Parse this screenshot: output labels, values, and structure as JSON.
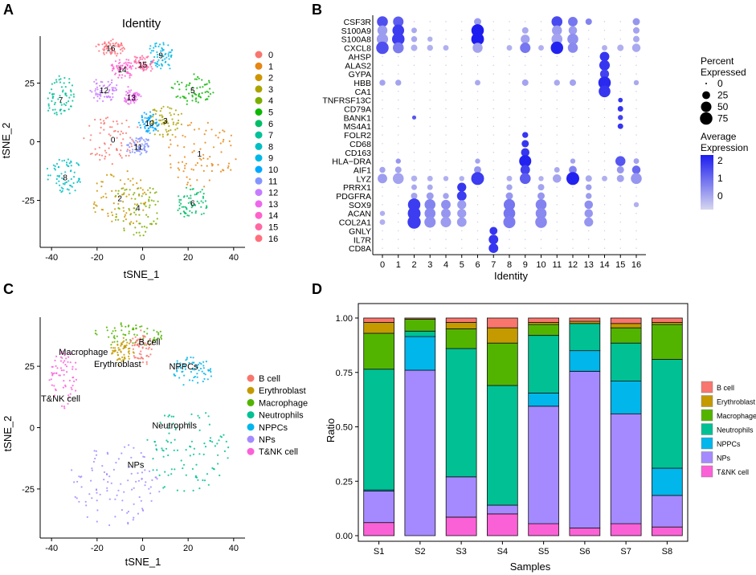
{
  "colors": {
    "identity": [
      "#F8766D",
      "#E68613",
      "#CD9600",
      "#ABA300",
      "#7CAE00",
      "#0CB702",
      "#00BE67",
      "#00C19A",
      "#00BFC4",
      "#00B8E7",
      "#00A9FF",
      "#8494FF",
      "#C77CFF",
      "#ED68ED",
      "#FF61CC",
      "#FF68A1",
      "#FF6F7C"
    ],
    "celltype": [
      "#F8766D",
      "#C49A00",
      "#53B400",
      "#00C094",
      "#00B6EB",
      "#A58AFF",
      "#FB61D7"
    ],
    "dot_low": "#d6d6f0",
    "dot_high": "#1c1cf0"
  },
  "chart_data": [
    {
      "panel": "A",
      "type": "scatter",
      "title": "Identity",
      "xlabel": "tSNE_1",
      "ylabel": "tSNE_2",
      "xlim": [
        -45,
        45
      ],
      "ylim": [
        -45,
        45
      ],
      "xticks": [
        -40,
        -20,
        0,
        20,
        40
      ],
      "yticks": [
        -25,
        0,
        25
      ],
      "legend": [
        "0",
        "1",
        "2",
        "3",
        "4",
        "5",
        "6",
        "7",
        "8",
        "9",
        "10",
        "11",
        "12",
        "13",
        "14",
        "15",
        "16"
      ],
      "legend_position": "right",
      "clusters": [
        {
          "label": "0",
          "cx": -13,
          "cy": 1,
          "rx": 13,
          "ry": 10
        },
        {
          "label": "1",
          "cx": 25,
          "cy": -5,
          "rx": 16,
          "ry": 14
        },
        {
          "label": "2",
          "cx": -10,
          "cy": -24,
          "rx": 13,
          "ry": 12
        },
        {
          "label": "3",
          "cx": 10,
          "cy": 9,
          "rx": 7,
          "ry": 7
        },
        {
          "label": "4",
          "cx": -2,
          "cy": -28,
          "rx": 10,
          "ry": 12
        },
        {
          "label": "5",
          "cx": 22,
          "cy": 22,
          "rx": 9,
          "ry": 6
        },
        {
          "label": "6",
          "cx": 22,
          "cy": -26,
          "rx": 7,
          "ry": 6
        },
        {
          "label": "7",
          "cx": -36,
          "cy": 18,
          "rx": 6,
          "ry": 10
        },
        {
          "label": "8",
          "cx": -34,
          "cy": -15,
          "rx": 8,
          "ry": 8
        },
        {
          "label": "9",
          "cx": 8,
          "cy": 37,
          "rx": 6,
          "ry": 6
        },
        {
          "label": "10",
          "cx": 3,
          "cy": 8,
          "rx": 4,
          "ry": 4
        },
        {
          "label": "11",
          "cx": -2,
          "cy": -2,
          "rx": 5,
          "ry": 4
        },
        {
          "label": "12",
          "cx": -17,
          "cy": 22,
          "rx": 6,
          "ry": 5
        },
        {
          "label": "13",
          "cx": -5,
          "cy": 19,
          "rx": 3,
          "ry": 3
        },
        {
          "label": "14",
          "cx": -9,
          "cy": 31,
          "rx": 5,
          "ry": 4
        },
        {
          "label": "15",
          "cx": 0,
          "cy": 33,
          "rx": 5,
          "ry": 3
        },
        {
          "label": "16",
          "cx": -14,
          "cy": 40,
          "rx": 6,
          "ry": 3
        }
      ]
    },
    {
      "panel": "B",
      "type": "dot",
      "xlabel": "Identity",
      "identities": [
        "0",
        "1",
        "2",
        "3",
        "4",
        "5",
        "6",
        "7",
        "8",
        "9",
        "10",
        "11",
        "12",
        "13",
        "14",
        "15",
        "16"
      ],
      "genes": [
        "CSF3R",
        "S100A9",
        "S100A8",
        "CXCL8",
        "AHSP",
        "ALAS2",
        "GYPA",
        "HBB",
        "CA1",
        "TNFRSF13C",
        "CD79A",
        "BANK1",
        "MS4A1",
        "FOLR2",
        "CD68",
        "CD163",
        "HLA−DRA",
        "AIF1",
        "LYZ",
        "PRRX1",
        "PDGFRA",
        "SOX9",
        "ACAN",
        "COL2A1",
        "GNLY",
        "IL7R",
        "CD8A"
      ],
      "legend_size": {
        "title": "Percent\nExpressed",
        "values": [
          0,
          25,
          50,
          75
        ]
      },
      "legend_color": {
        "title": "Average\nExpression",
        "ticks": [
          2,
          1,
          0
        ]
      },
      "dots": [
        [
          "CSF3R",
          0,
          55,
          1.6
        ],
        [
          "CSF3R",
          1,
          50,
          1.4
        ],
        [
          "CSF3R",
          6,
          20,
          0.4
        ],
        [
          "CSF3R",
          11,
          55,
          1.7
        ],
        [
          "CSF3R",
          12,
          40,
          1.0
        ],
        [
          "CSF3R",
          13,
          15,
          0.8
        ],
        [
          "CSF3R",
          16,
          20,
          0.5
        ],
        [
          "S100A9",
          0,
          45,
          0.4
        ],
        [
          "S100A9",
          1,
          65,
          1.9
        ],
        [
          "S100A9",
          2,
          10,
          0.2
        ],
        [
          "S100A9",
          6,
          75,
          2.4
        ],
        [
          "S100A9",
          9,
          15,
          0.2
        ],
        [
          "S100A9",
          11,
          45,
          0.4
        ],
        [
          "S100A9",
          12,
          30,
          0.4
        ],
        [
          "S100A9",
          16,
          15,
          0.3
        ],
        [
          "S100A8",
          0,
          60,
          0.4
        ],
        [
          "S100A8",
          1,
          75,
          1.9
        ],
        [
          "S100A8",
          2,
          12,
          0.2
        ],
        [
          "S100A8",
          3,
          8,
          0.1
        ],
        [
          "S100A8",
          6,
          78,
          2.4
        ],
        [
          "S100A8",
          9,
          35,
          0.3
        ],
        [
          "S100A8",
          11,
          55,
          0.3
        ],
        [
          "S100A8",
          12,
          55,
          0.6
        ],
        [
          "S100A8",
          16,
          15,
          0.2
        ],
        [
          "CXCL8",
          0,
          75,
          1.6
        ],
        [
          "CXCL8",
          1,
          55,
          0.9
        ],
        [
          "CXCL8",
          2,
          15,
          0.1
        ],
        [
          "CXCL8",
          3,
          12,
          0.1
        ],
        [
          "CXCL8",
          4,
          10,
          0.1
        ],
        [
          "CXCL8",
          6,
          45,
          0.3
        ],
        [
          "CXCL8",
          8,
          10,
          0.1
        ],
        [
          "CXCL8",
          9,
          50,
          1.0
        ],
        [
          "CXCL8",
          10,
          10,
          0.1
        ],
        [
          "CXCL8",
          11,
          75,
          2.3
        ],
        [
          "CXCL8",
          12,
          45,
          0.7
        ],
        [
          "CXCL8",
          14,
          10,
          0.1
        ],
        [
          "CXCL8",
          15,
          15,
          0.1
        ],
        [
          "CXCL8",
          16,
          30,
          0.2
        ],
        [
          "AHSP",
          14,
          40,
          2.0
        ],
        [
          "ALAS2",
          14,
          50,
          2.0
        ],
        [
          "GYPA",
          14,
          35,
          1.8
        ],
        [
          "HBB",
          0,
          12,
          0.3
        ],
        [
          "HBB",
          1,
          12,
          0.3
        ],
        [
          "HBB",
          6,
          10,
          0.2
        ],
        [
          "HBB",
          9,
          15,
          0.3
        ],
        [
          "HBB",
          11,
          12,
          0.2
        ],
        [
          "HBB",
          12,
          15,
          0.3
        ],
        [
          "HBB",
          14,
          75,
          2.2
        ],
        [
          "HBB",
          16,
          8,
          0.2
        ],
        [
          "CA1",
          14,
          65,
          2.0
        ],
        [
          "TNFRSF13C",
          15,
          6,
          2.0
        ],
        [
          "CD79A",
          15,
          10,
          2.0
        ],
        [
          "BANK1",
          2,
          4,
          1.5
        ],
        [
          "BANK1",
          15,
          8,
          1.8
        ],
        [
          "MS4A1",
          15,
          10,
          2.0
        ],
        [
          "FOLR2",
          9,
          12,
          2.0
        ],
        [
          "CD68",
          9,
          20,
          2.0
        ],
        [
          "CD163",
          9,
          30,
          2.0
        ],
        [
          "HLA−DRA",
          1,
          8,
          0.5
        ],
        [
          "HLA−DRA",
          6,
          8,
          0.3
        ],
        [
          "HLA−DRA",
          9,
          70,
          2.3
        ],
        [
          "HLA−DRA",
          12,
          8,
          0.3
        ],
        [
          "HLA−DRA",
          15,
          45,
          1.5
        ],
        [
          "HLA−DRA",
          16,
          10,
          0.3
        ],
        [
          "AIF1",
          0,
          12,
          0.3
        ],
        [
          "AIF1",
          1,
          15,
          0.3
        ],
        [
          "AIF1",
          6,
          20,
          0.5
        ],
        [
          "AIF1",
          9,
          40,
          1.8
        ],
        [
          "AIF1",
          11,
          10,
          0.2
        ],
        [
          "AIF1",
          12,
          25,
          0.8
        ],
        [
          "AIF1",
          15,
          20,
          0.5
        ],
        [
          "AIF1",
          16,
          30,
          1.2
        ],
        [
          "LYZ",
          0,
          40,
          0.4
        ],
        [
          "LYZ",
          1,
          55,
          0.3
        ],
        [
          "LYZ",
          2,
          12,
          0.1
        ],
        [
          "LYZ",
          3,
          10,
          0.1
        ],
        [
          "LYZ",
          4,
          8,
          0.1
        ],
        [
          "LYZ",
          5,
          8,
          0.1
        ],
        [
          "LYZ",
          6,
          80,
          1.9
        ],
        [
          "LYZ",
          8,
          10,
          0.1
        ],
        [
          "LYZ",
          9,
          55,
          1.4
        ],
        [
          "LYZ",
          10,
          8,
          0.1
        ],
        [
          "LYZ",
          11,
          30,
          0.3
        ],
        [
          "LYZ",
          12,
          80,
          2.3
        ],
        [
          "LYZ",
          13,
          15,
          0.2
        ],
        [
          "LYZ",
          14,
          10,
          0.1
        ],
        [
          "LYZ",
          15,
          20,
          0.3
        ],
        [
          "LYZ",
          16,
          55,
          0.5
        ],
        [
          "PRRX1",
          2,
          10,
          0.2
        ],
        [
          "PRRX1",
          3,
          10,
          0.2
        ],
        [
          "PRRX1",
          5,
          35,
          2.0
        ],
        [
          "PRRX1",
          8,
          12,
          0.3
        ],
        [
          "PRRX1",
          10,
          15,
          0.3
        ],
        [
          "PRRX1",
          13,
          12,
          0.4
        ],
        [
          "PDGFRA",
          2,
          15,
          0.3
        ],
        [
          "PDGFRA",
          3,
          20,
          0.4
        ],
        [
          "PDGFRA",
          4,
          12,
          0.3
        ],
        [
          "PDGFRA",
          5,
          40,
          1.9
        ],
        [
          "PDGFRA",
          8,
          20,
          0.5
        ],
        [
          "PDGFRA",
          10,
          20,
          0.5
        ],
        [
          "PDGFRA",
          13,
          12,
          0.4
        ],
        [
          "SOX9",
          2,
          75,
          1.9
        ],
        [
          "SOX9",
          3,
          55,
          0.8
        ],
        [
          "SOX9",
          4,
          40,
          0.6
        ],
        [
          "SOX9",
          5,
          35,
          0.4
        ],
        [
          "SOX9",
          8,
          60,
          1.0
        ],
        [
          "SOX9",
          10,
          55,
          0.8
        ],
        [
          "SOX9",
          13,
          30,
          0.6
        ],
        [
          "SOX9",
          16,
          8,
          0.1
        ],
        [
          "ACAN",
          0,
          8,
          0.1
        ],
        [
          "ACAN",
          2,
          80,
          1.9
        ],
        [
          "ACAN",
          3,
          55,
          0.7
        ],
        [
          "ACAN",
          4,
          40,
          0.5
        ],
        [
          "ACAN",
          5,
          35,
          0.4
        ],
        [
          "ACAN",
          8,
          65,
          1.0
        ],
        [
          "ACAN",
          10,
          55,
          0.7
        ],
        [
          "ACAN",
          13,
          30,
          0.5
        ],
        [
          "COL2A1",
          0,
          10,
          0.1
        ],
        [
          "COL2A1",
          2,
          85,
          1.9
        ],
        [
          "COL2A1",
          3,
          60,
          0.6
        ],
        [
          "COL2A1",
          4,
          50,
          0.4
        ],
        [
          "COL2A1",
          5,
          40,
          0.4
        ],
        [
          "COL2A1",
          8,
          70,
          0.9
        ],
        [
          "COL2A1",
          10,
          65,
          0.7
        ],
        [
          "COL2A1",
          13,
          35,
          0.5
        ],
        [
          "GNLY",
          7,
          25,
          2.0
        ],
        [
          "IL7R",
          7,
          40,
          2.0
        ],
        [
          "CD8A",
          7,
          40,
          2.0
        ]
      ]
    },
    {
      "panel": "C",
      "type": "scatter",
      "xlabel": "tSNE_1",
      "ylabel": "tSNE_2",
      "xlim": [
        -45,
        45
      ],
      "ylim": [
        -45,
        45
      ],
      "xticks": [
        -40,
        -20,
        0,
        20,
        40
      ],
      "yticks": [
        -25,
        0,
        25
      ],
      "legend": [
        "B cell",
        "Erythroblast",
        "Macrophage",
        "Neutrophils",
        "NPPCs",
        "NPs",
        "T&NK cell"
      ],
      "legend_position": "right",
      "clusters": [
        {
          "label": "B cell",
          "cx": 0,
          "cy": 33,
          "rx": 5,
          "ry": 7
        },
        {
          "label": "Erythroblast",
          "cx": -9,
          "cy": 31,
          "rx": 5,
          "ry": 4
        },
        {
          "label": "Macrophage",
          "cx": -6,
          "cy": 38,
          "rx": 16,
          "ry": 4
        },
        {
          "label": "Neutrophils",
          "cx": 20,
          "cy": -10,
          "rx": 18,
          "ry": 18
        },
        {
          "label": "NPPCs",
          "cx": 22,
          "cy": 23,
          "rx": 9,
          "ry": 6
        },
        {
          "label": "NPs",
          "cx": -12,
          "cy": -23,
          "rx": 20,
          "ry": 17
        },
        {
          "label": "T&NK cell",
          "cx": -35,
          "cy": 20,
          "rx": 6,
          "ry": 12
        }
      ],
      "annotations": [
        "Macrophage",
        "B cell",
        "Erythroblast",
        "NPPCs",
        "T&NK cell",
        "Neutrophils",
        "NPs"
      ]
    },
    {
      "panel": "D",
      "type": "bar",
      "stacked": true,
      "xlabel": "Samples",
      "ylabel": "Ratio",
      "ylim": [
        0,
        1
      ],
      "yticks": [
        "0.00",
        "0.25",
        "0.50",
        "0.75",
        "1.00"
      ],
      "categories": [
        "S1",
        "S2",
        "S3",
        "S4",
        "S5",
        "S6",
        "S7",
        "S8"
      ],
      "legend_position": "right",
      "series": [
        {
          "name": "T&NK cell",
          "values": [
            0.06,
            0.0,
            0.085,
            0.1,
            0.055,
            0.035,
            0.055,
            0.04
          ]
        },
        {
          "name": "NPs",
          "values": [
            0.145,
            0.76,
            0.185,
            0.04,
            0.54,
            0.72,
            0.505,
            0.145
          ]
        },
        {
          "name": "NPPCs",
          "values": [
            0.005,
            0.155,
            0.0,
            0.0,
            0.06,
            0.095,
            0.15,
            0.125
          ]
        },
        {
          "name": "Neutrophils",
          "values": [
            0.555,
            0.025,
            0.59,
            0.55,
            0.265,
            0.125,
            0.175,
            0.5
          ]
        },
        {
          "name": "Macrophage",
          "values": [
            0.165,
            0.055,
            0.09,
            0.195,
            0.05,
            0.0,
            0.07,
            0.16
          ]
        },
        {
          "name": "Erythroblast",
          "values": [
            0.05,
            0.0,
            0.03,
            0.07,
            0.01,
            0.01,
            0.02,
            0.01
          ]
        },
        {
          "name": "B cell",
          "values": [
            0.02,
            0.005,
            0.02,
            0.045,
            0.02,
            0.015,
            0.025,
            0.02
          ]
        }
      ],
      "legend": [
        "B cell",
        "Erythroblast",
        "Macrophage",
        "Neutrophils",
        "NPPCs",
        "NPs",
        "T&NK cell"
      ]
    }
  ],
  "panel_labels": [
    "A",
    "B",
    "C",
    "D"
  ]
}
